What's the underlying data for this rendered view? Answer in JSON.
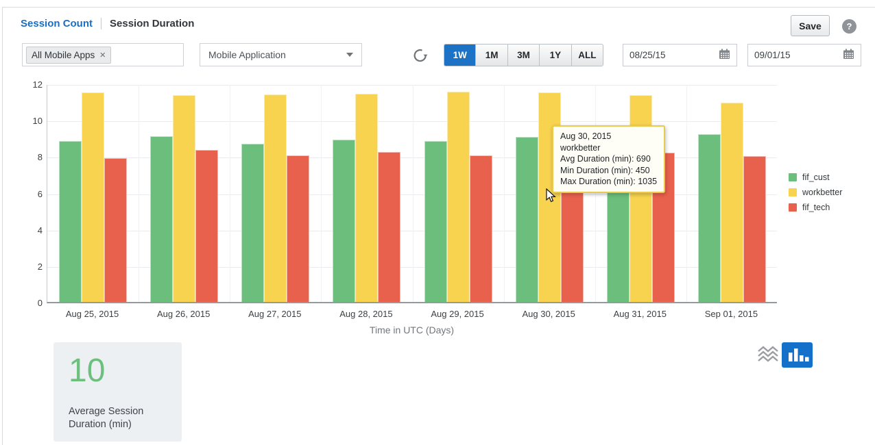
{
  "header": {
    "tabs": [
      {
        "label": "Session Count",
        "active": true
      },
      {
        "label": "Session Duration",
        "active": false
      }
    ],
    "save_label": "Save"
  },
  "filters": {
    "app_chip": "All Mobile Apps",
    "dropdown_value": "Mobile Application",
    "range_buttons": [
      "1W",
      "1M",
      "3M",
      "1Y",
      "ALL"
    ],
    "range_selected": "1W",
    "start_date": "08/25/15",
    "end_date": "09/01/15"
  },
  "chart_data": {
    "type": "bar",
    "title": "",
    "xlabel": "Time in UTC (Days)",
    "ylabel": "",
    "ylim": [
      0,
      12
    ],
    "yticks": [
      0,
      2,
      4,
      6,
      8,
      10,
      12
    ],
    "grid": true,
    "legend_position": "right",
    "categories": [
      "Aug 25, 2015",
      "Aug 26, 2015",
      "Aug 27, 2015",
      "Aug 28, 2015",
      "Aug 29, 2015",
      "Aug 30, 2015",
      "Aug 31, 2015",
      "Sep 01, 2015"
    ],
    "series": [
      {
        "name": "fif_cust",
        "color": "#6bbe7c",
        "values": [
          8.85,
          9.1,
          8.7,
          8.9,
          8.85,
          9.05,
          9.0,
          9.2
        ]
      },
      {
        "name": "workbetter",
        "color": "#f7d350",
        "values": [
          11.5,
          11.35,
          11.4,
          11.45,
          11.55,
          11.5,
          11.35,
          10.95
        ]
      },
      {
        "name": "fif_tech",
        "color": "#e8614c",
        "values": [
          7.9,
          8.35,
          8.05,
          8.25,
          8.05,
          8.15,
          8.2,
          8.0
        ]
      }
    ]
  },
  "tooltip": {
    "date": "Aug 30, 2015",
    "series": "workbetter",
    "avg": "Avg Duration (min): 690",
    "min": "Min Duration (min): 450",
    "max": "Max Duration (min): 1035"
  },
  "kpi": {
    "value": "10",
    "label": "Average Session Duration (min)"
  },
  "colors": {
    "accent_blue": "#1c72c4",
    "link_blue": "#1b6ec5",
    "bar_green": "#6bbe7c",
    "bar_yellow": "#f7d350",
    "bar_red": "#e8614c",
    "tooltip_border": "#eac94f",
    "card_bg": "#edf0f3"
  }
}
